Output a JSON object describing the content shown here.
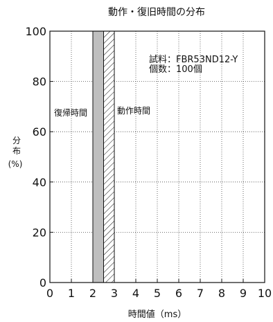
{
  "chart_data": {
    "type": "bar",
    "title": "動作・復旧時間の分布",
    "xlabel": "時間値（ms）",
    "ylabel": "分布（%）",
    "ylabel_lines": [
      "分",
      "布",
      "(%)"
    ],
    "xlim": [
      0,
      10
    ],
    "ylim": [
      0,
      100
    ],
    "x_ticks": [
      0,
      1,
      2,
      3,
      4,
      5,
      6,
      7,
      8,
      9,
      10
    ],
    "y_ticks": [
      0,
      20,
      40,
      60,
      80,
      100
    ],
    "grid": true,
    "annotation_lines": [
      "試料：FBR53ND12-Y",
      "個数：100個"
    ],
    "series": [
      {
        "name": "復帰時間",
        "x_start": 2.0,
        "x_end": 2.5,
        "value": 100,
        "fill": "#bfbfbf",
        "pattern": "solid"
      },
      {
        "name": "動作時間",
        "x_start": 2.5,
        "x_end": 3.0,
        "value": 100,
        "fill": "#ffffff",
        "pattern": "hatch"
      }
    ]
  }
}
